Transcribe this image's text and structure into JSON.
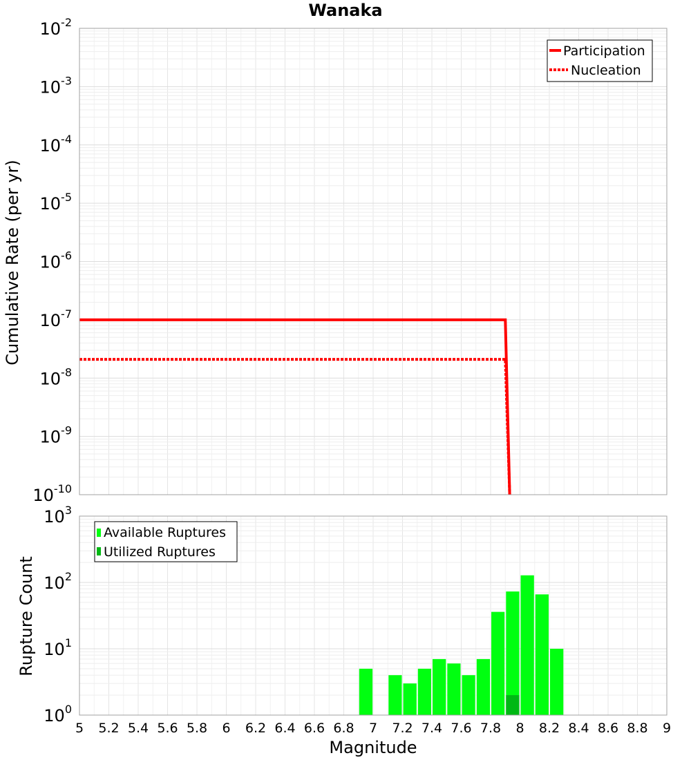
{
  "chart_data": [
    {
      "type": "line",
      "title": "Wanaka",
      "xlabel": "",
      "ylabel": "Cumulative Rate (per yr)",
      "xlim": [
        5,
        9
      ],
      "ylim": [
        1e-10,
        0.01
      ],
      "yscale": "log",
      "y_tick_exponents": [
        "-2",
        "-3",
        "-4",
        "-5",
        "-6",
        "-7",
        "-8",
        "-9",
        "-10"
      ],
      "y_tick_base": "10",
      "grid": true,
      "legend_position": "top-right",
      "series": [
        {
          "name": "Participation",
          "color": "#ff0000",
          "style": "solid",
          "points": [
            [
              5.0,
              1e-07
            ],
            [
              7.9,
              1e-07
            ],
            [
              7.93,
              1e-10
            ]
          ]
        },
        {
          "name": "Nucleation",
          "color": "#ff0000",
          "style": "dotted",
          "points": [
            [
              5.0,
              2.1e-08
            ],
            [
              7.9,
              2.1e-08
            ],
            [
              7.93,
              1e-10
            ]
          ]
        }
      ]
    },
    {
      "type": "bar",
      "xlabel": "Magnitude",
      "ylabel": "Rupture Count",
      "xlim": [
        5,
        9
      ],
      "ylim": [
        1,
        1000
      ],
      "yscale": "log",
      "y_tick_exponents": [
        "3",
        "2",
        "1",
        "0"
      ],
      "y_tick_base": "10",
      "x_ticks": [
        "5",
        "5.2",
        "5.4",
        "5.6",
        "5.8",
        "6",
        "6.2",
        "6.4",
        "6.6",
        "6.8",
        "7",
        "7.2",
        "7.4",
        "7.6",
        "7.8",
        "8",
        "8.2",
        "8.4",
        "8.6",
        "8.8",
        "9"
      ],
      "grid": true,
      "legend_position": "top-left",
      "bin_width": 0.1,
      "series": [
        {
          "name": "Available Ruptures",
          "color": "#00ff10",
          "bins": [
            {
              "x": 6.95,
              "value": 5
            },
            {
              "x": 7.15,
              "value": 4
            },
            {
              "x": 7.25,
              "value": 3
            },
            {
              "x": 7.35,
              "value": 5
            },
            {
              "x": 7.45,
              "value": 7
            },
            {
              "x": 7.55,
              "value": 6
            },
            {
              "x": 7.65,
              "value": 4
            },
            {
              "x": 7.75,
              "value": 7
            },
            {
              "x": 7.85,
              "value": 36
            },
            {
              "x": 7.95,
              "value": 73
            },
            {
              "x": 8.05,
              "value": 128
            },
            {
              "x": 8.15,
              "value": 66
            },
            {
              "x": 8.25,
              "value": 10
            }
          ]
        },
        {
          "name": "Utilized Ruptures",
          "color": "#00b814",
          "bins": [
            {
              "x": 7.95,
              "value": 2
            }
          ]
        }
      ]
    }
  ]
}
